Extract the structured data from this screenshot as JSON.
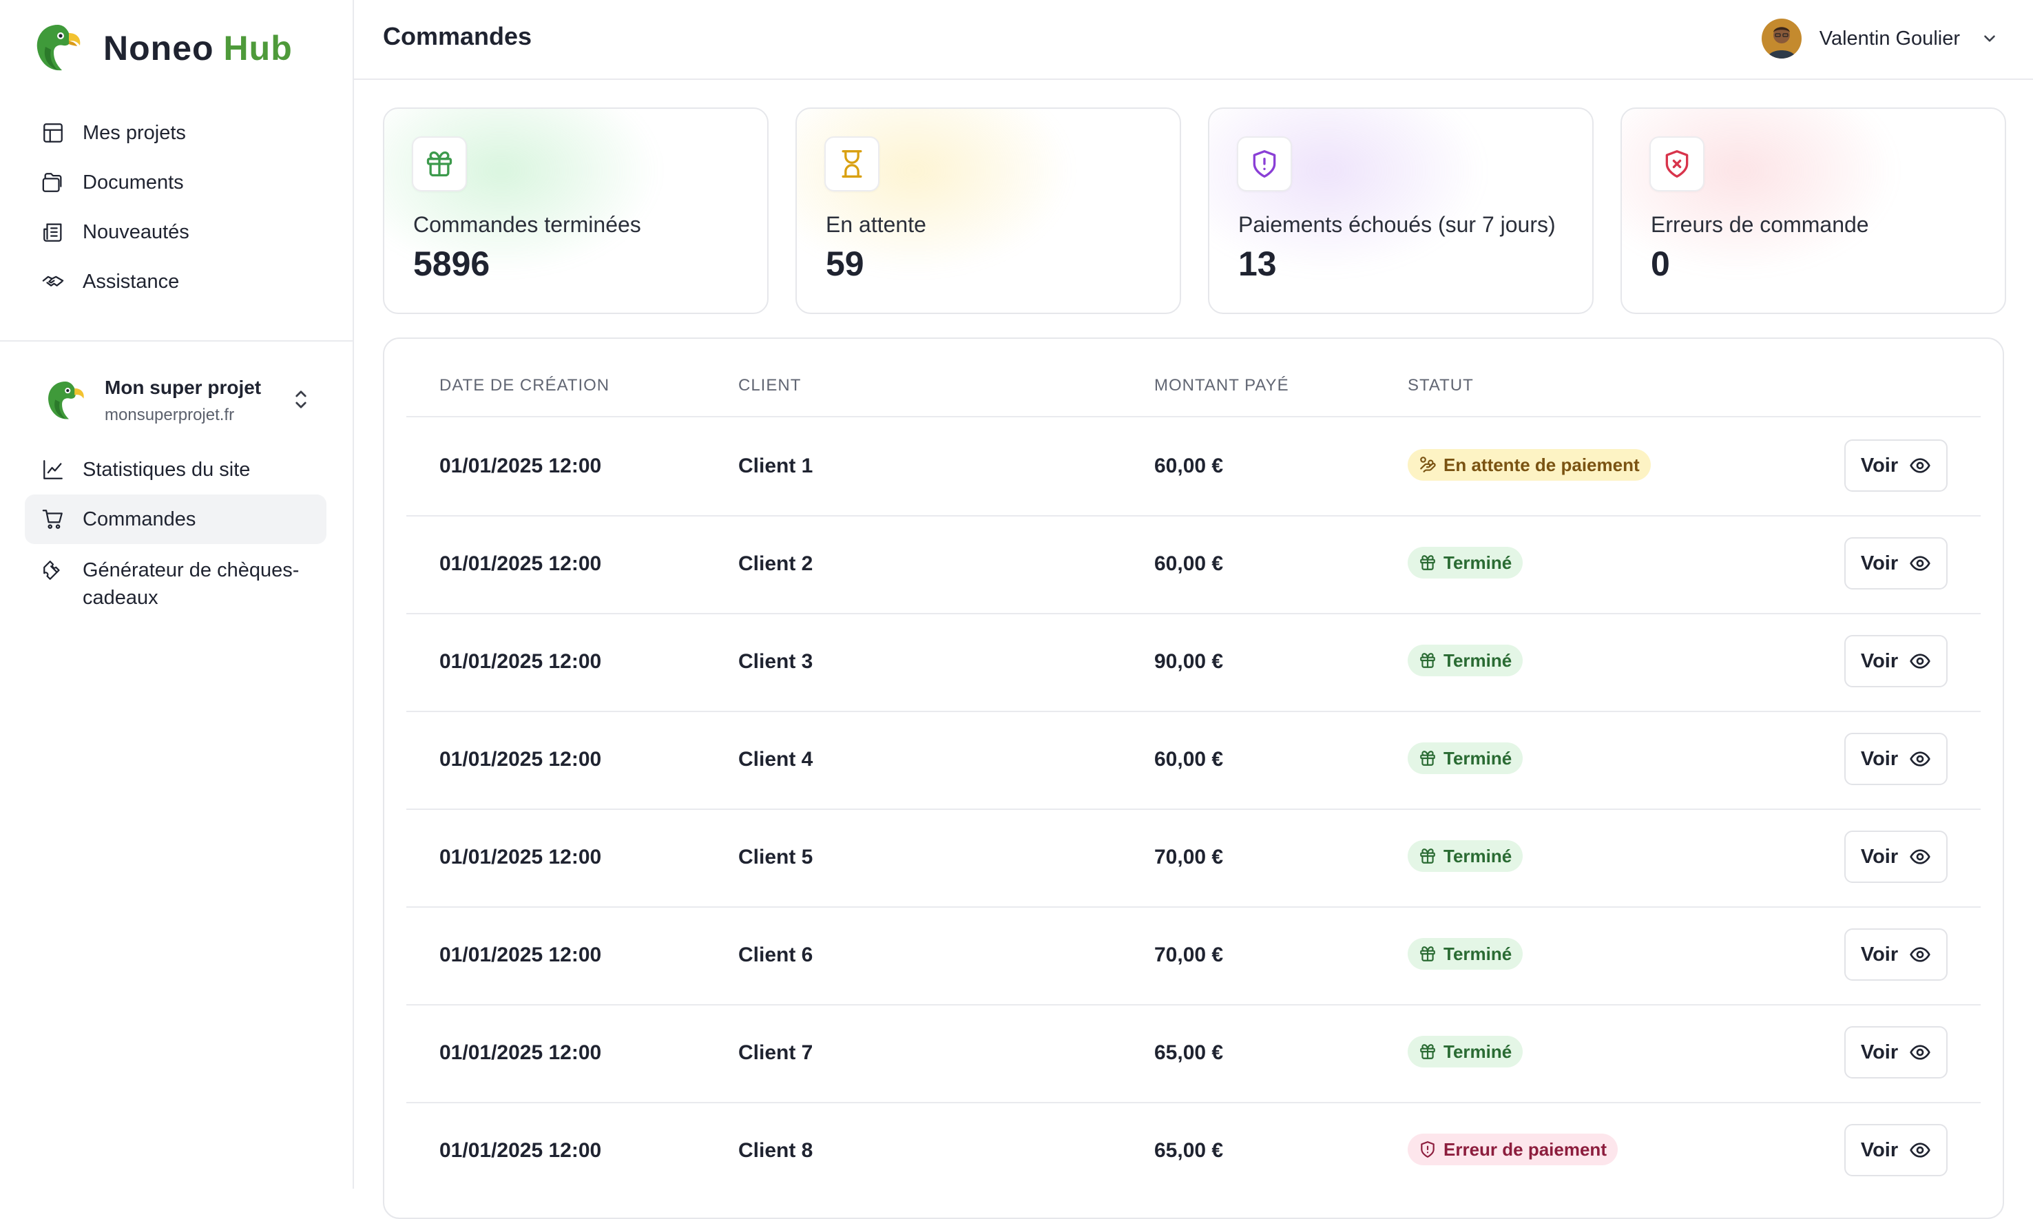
{
  "brand": {
    "name": "Noneo",
    "suffix": "Hub"
  },
  "nav_top": [
    {
      "label": "Mes projets",
      "icon": "layout-icon"
    },
    {
      "label": "Documents",
      "icon": "documents-icon"
    },
    {
      "label": "Nouveautés",
      "icon": "newspaper-icon"
    },
    {
      "label": "Assistance",
      "icon": "handshake-icon"
    }
  ],
  "project": {
    "name": "Mon super projet",
    "url": "monsuperprojet.fr"
  },
  "nav_project": [
    {
      "label": "Statistiques du site",
      "icon": "chart-line-icon"
    },
    {
      "label": "Commandes",
      "icon": "cart-icon"
    },
    {
      "label_line1": "Générateur de chèques-",
      "label_line2": "cadeaux",
      "icon": "ticket-icon"
    }
  ],
  "header": {
    "title": "Commandes",
    "user_name": "Valentin Goulier"
  },
  "stats": [
    {
      "label": "Commandes terminées",
      "value": "5896",
      "icon": "gift-icon",
      "color": "#3c9a4c"
    },
    {
      "label": "En attente",
      "value": "59",
      "icon": "hourglass-icon",
      "color": "#d9a011"
    },
    {
      "label": "Paiements échoués (sur 7 jours)",
      "value": "13",
      "icon": "shield-alert-icon",
      "color": "#8a3fd6"
    },
    {
      "label": "Erreurs de commande",
      "value": "0",
      "icon": "shield-x-icon",
      "color": "#d8344b"
    }
  ],
  "table": {
    "columns": [
      "DATE DE CRÉATION",
      "CLIENT",
      "MONTANT PAYÉ",
      "STATUT"
    ],
    "view_label": "Voir",
    "rows": [
      {
        "date": "01/01/2025 12:00",
        "client": "Client 1",
        "amount": "60,00 €",
        "status": "En attente de paiement",
        "kind": "pending"
      },
      {
        "date": "01/01/2025 12:00",
        "client": "Client 2",
        "amount": "60,00 €",
        "status": "Terminé",
        "kind": "done"
      },
      {
        "date": "01/01/2025 12:00",
        "client": "Client 3",
        "amount": "90,00 €",
        "status": "Terminé",
        "kind": "done"
      },
      {
        "date": "01/01/2025 12:00",
        "client": "Client 4",
        "amount": "60,00 €",
        "status": "Terminé",
        "kind": "done"
      },
      {
        "date": "01/01/2025 12:00",
        "client": "Client 5",
        "amount": "70,00 €",
        "status": "Terminé",
        "kind": "done"
      },
      {
        "date": "01/01/2025 12:00",
        "client": "Client 6",
        "amount": "70,00 €",
        "status": "Terminé",
        "kind": "done"
      },
      {
        "date": "01/01/2025 12:00",
        "client": "Client 7",
        "amount": "65,00 €",
        "status": "Terminé",
        "kind": "done"
      },
      {
        "date": "01/01/2025 12:00",
        "client": "Client 8",
        "amount": "65,00 €",
        "status": "Erreur de paiement",
        "kind": "error"
      }
    ]
  }
}
